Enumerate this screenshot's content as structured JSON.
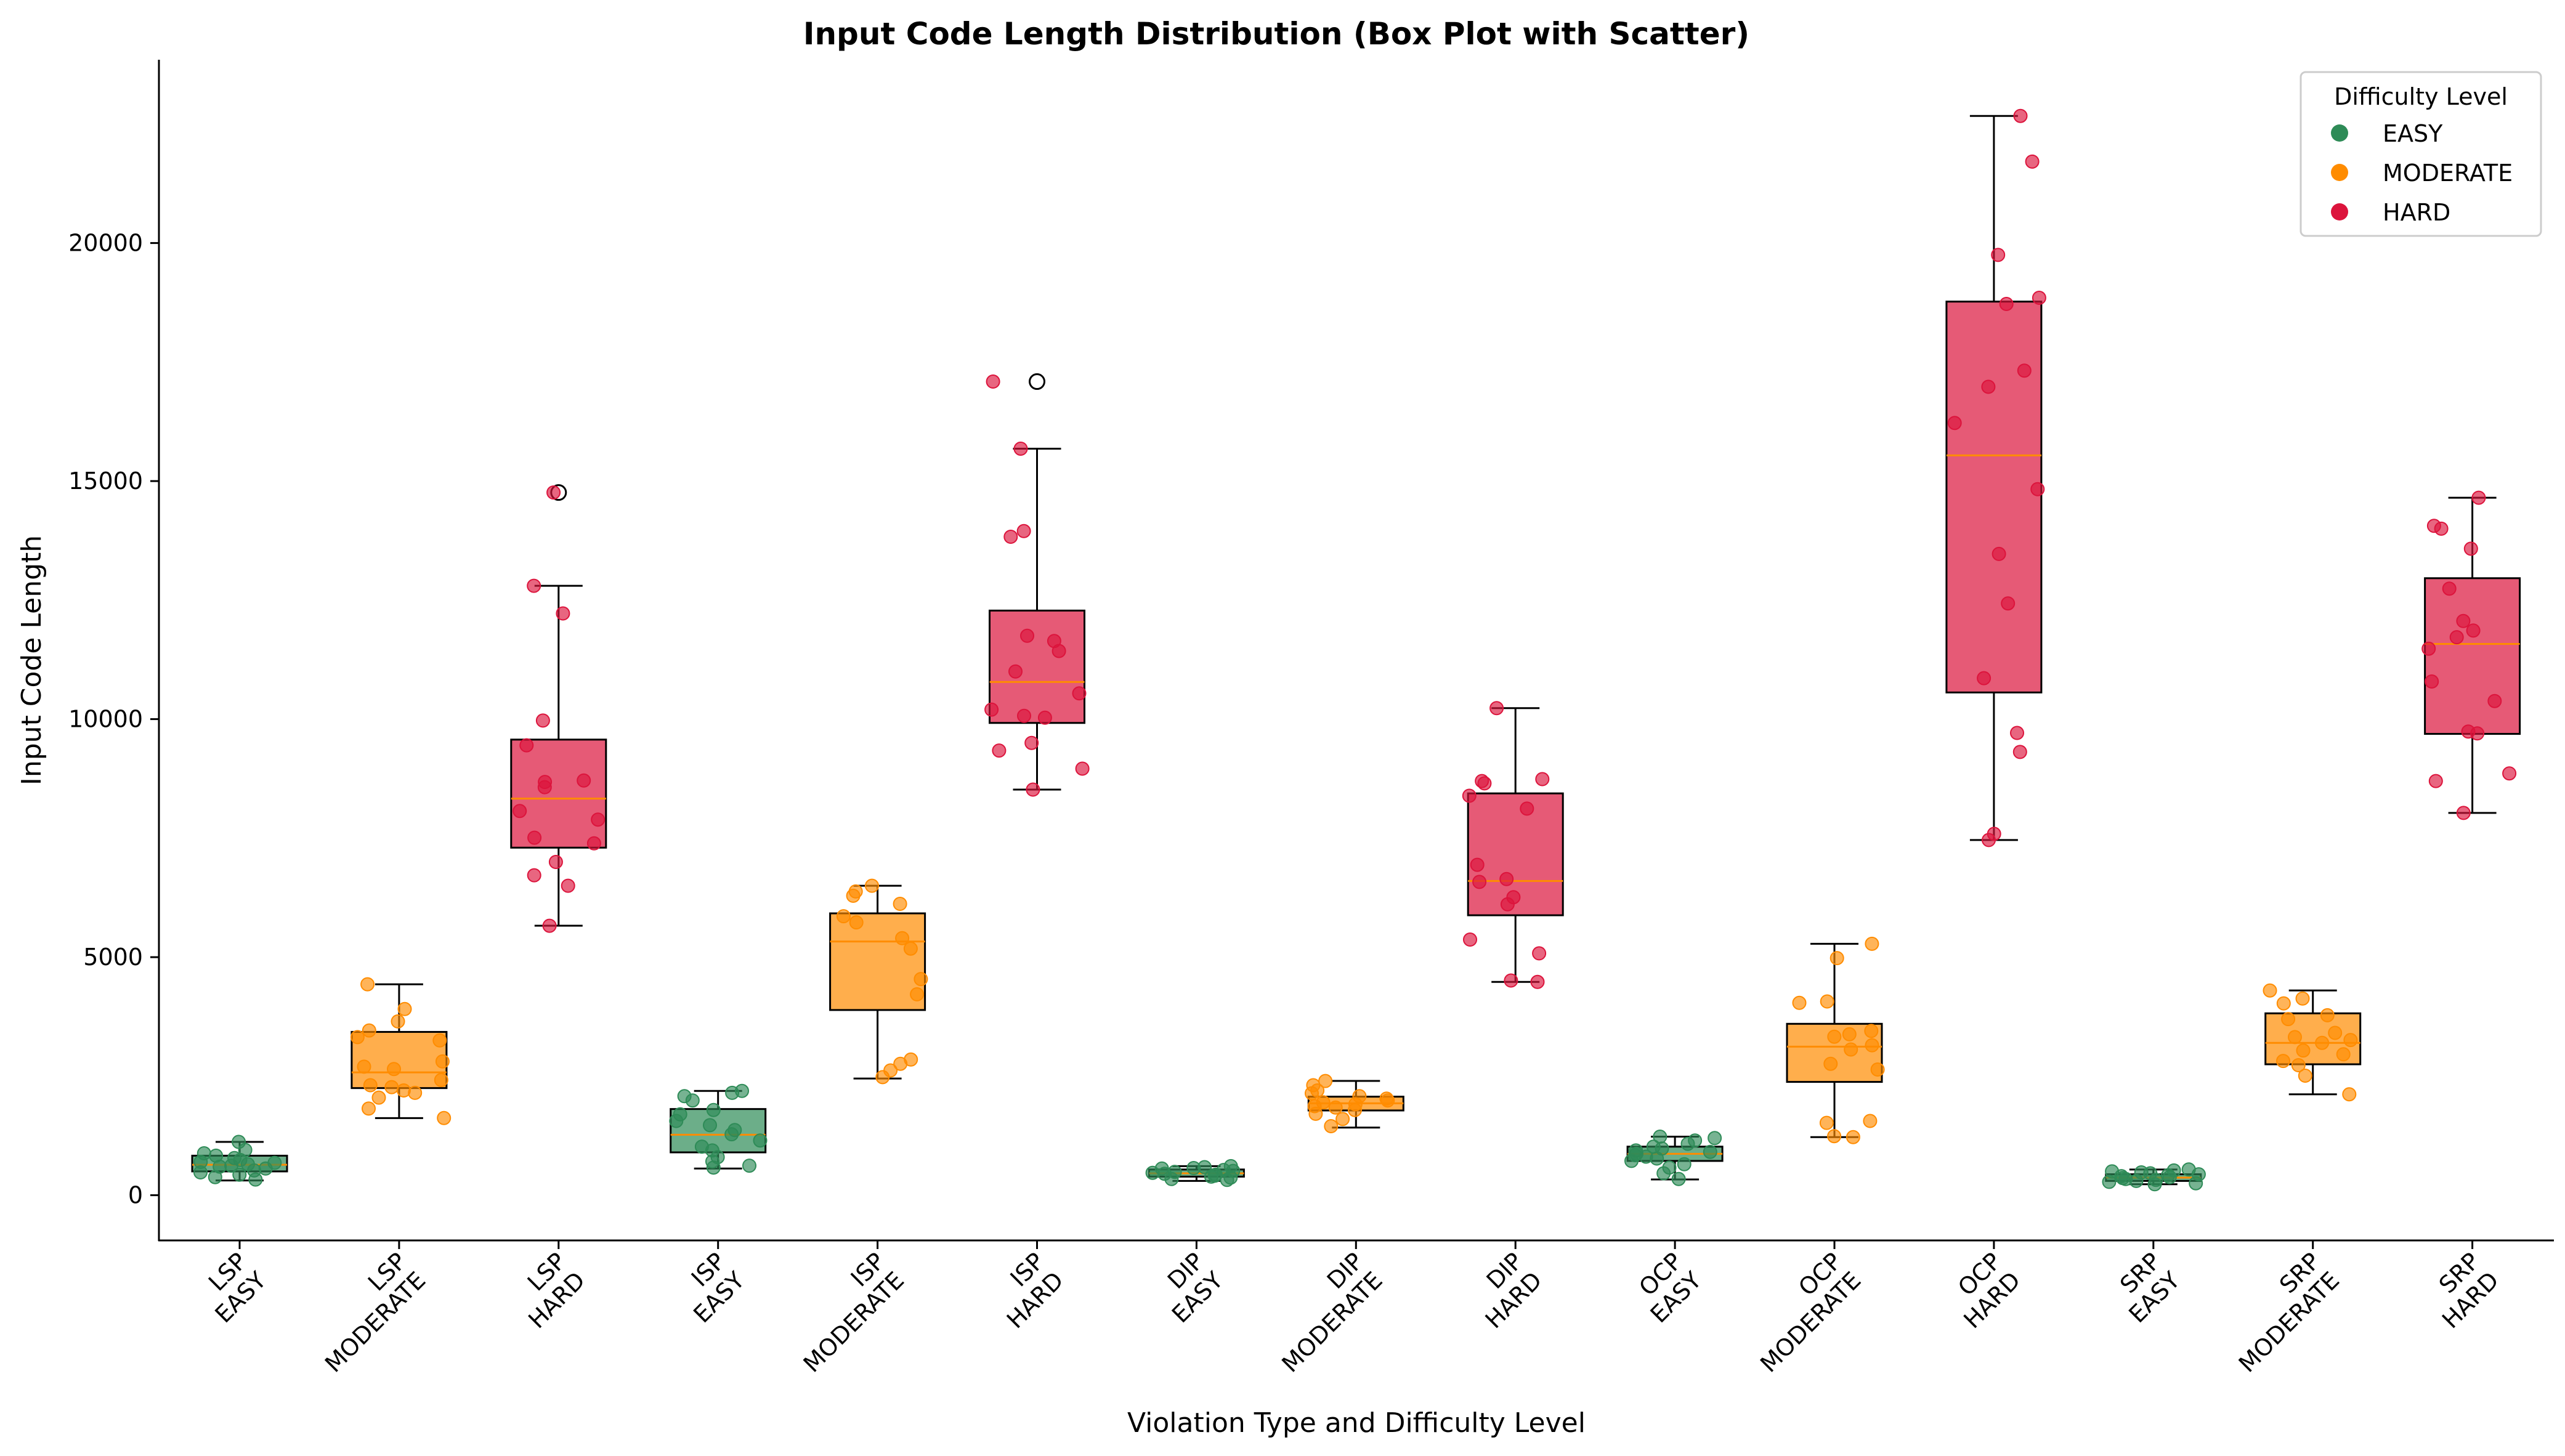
{
  "chart_data": {
    "type": "box",
    "title": "Input Code Length Distribution (Box Plot with Scatter)",
    "xlabel": "Violation Type and Difficulty Level",
    "ylabel": "Input Code Length",
    "ylim": [
      -950,
      23850
    ],
    "yticks": [
      0,
      5000,
      10000,
      15000,
      20000
    ],
    "grid": false,
    "legend": {
      "title": "Difficulty Level",
      "position": "top-right",
      "entries": [
        {
          "label": "EASY",
          "color": "#2e8b57"
        },
        {
          "label": "MODERATE",
          "color": "#ff8c00"
        },
        {
          "label": "HARD",
          "color": "#dc143c"
        }
      ]
    },
    "median_color": "#ff8c00",
    "groups": [
      {
        "violation": "LSP",
        "difficulty": "EASY",
        "color": "#2e8b57",
        "box": {
          "whisker_low": 310,
          "q1": 500,
          "median": 640,
          "q3": 830,
          "whisker_high": 1120
        },
        "outliers": [],
        "points": [
          1120,
          950,
          880,
          830,
          780,
          740,
          700,
          680,
          650,
          620,
          600,
          560,
          520,
          480,
          430,
          380,
          330
        ]
      },
      {
        "violation": "LSP",
        "difficulty": "MODERATE",
        "color": "#ff8c00",
        "box": {
          "whisker_low": 1620,
          "q1": 2250,
          "median": 2580,
          "q3": 3430,
          "whisker_high": 4430
        },
        "outliers": [],
        "points": [
          4430,
          3910,
          3650,
          3460,
          3320,
          3250,
          2810,
          2700,
          2650,
          2420,
          2310,
          2270,
          2200,
          2150,
          2050,
          1820,
          1620
        ]
      },
      {
        "violation": "LSP",
        "difficulty": "HARD",
        "color": "#dc143c",
        "box": {
          "whisker_low": 5660,
          "q1": 7300,
          "median": 8330,
          "q3": 9570,
          "whisker_high": 12800
        },
        "outliers": [
          14760
        ],
        "points": [
          14760,
          12800,
          12220,
          9970,
          9450,
          8710,
          8680,
          8570,
          8070,
          7890,
          7510,
          7390,
          7000,
          6720,
          6500,
          5660
        ]
      },
      {
        "violation": "ISP",
        "difficulty": "EASY",
        "color": "#2e8b57",
        "box": {
          "whisker_low": 560,
          "q1": 900,
          "median": 1270,
          "q3": 1810,
          "whisker_high": 2190
        },
        "outliers": [],
        "points": [
          2190,
          2150,
          2080,
          1990,
          1790,
          1700,
          1560,
          1470,
          1370,
          1280,
          1150,
          1020,
          940,
          800,
          710,
          620,
          580
        ]
      },
      {
        "violation": "ISP",
        "difficulty": "MODERATE",
        "color": "#ff8c00",
        "box": {
          "whisker_low": 2450,
          "q1": 3890,
          "median": 5330,
          "q3": 5920,
          "whisker_high": 6500
        },
        "outliers": [],
        "points": [
          6500,
          6380,
          6290,
          6120,
          5860,
          5730,
          5400,
          5180,
          4540,
          4220,
          2850,
          2760,
          2620,
          2480
        ]
      },
      {
        "violation": "ISP",
        "difficulty": "HARD",
        "color": "#dc143c",
        "box": {
          "whisker_low": 8520,
          "q1": 9920,
          "median": 10780,
          "q3": 12280,
          "whisker_high": 15680
        },
        "outliers": [
          17090
        ],
        "points": [
          17090,
          15680,
          13950,
          13830,
          11750,
          11640,
          11430,
          11000,
          10540,
          10200,
          10070,
          10030,
          9500,
          9340,
          8960,
          8520
        ]
      },
      {
        "violation": "DIP",
        "difficulty": "EASY",
        "color": "#2e8b57",
        "box": {
          "whisker_low": 300,
          "q1": 390,
          "median": 460,
          "q3": 540,
          "whisker_high": 610
        },
        "outliers": [],
        "points": [
          610,
          590,
          570,
          560,
          530,
          510,
          490,
          470,
          450,
          430,
          410,
          390,
          370,
          340,
          320
        ]
      },
      {
        "violation": "DIP",
        "difficulty": "MODERATE",
        "color": "#ff8c00",
        "box": {
          "whisker_low": 1420,
          "q1": 1780,
          "median": 1930,
          "q3": 2070,
          "whisker_high": 2400
        },
        "outliers": [],
        "points": [
          2400,
          2310,
          2200,
          2140,
          2080,
          2030,
          1990,
          1950,
          1910,
          1870,
          1840,
          1790,
          1710,
          1600,
          1450
        ]
      },
      {
        "violation": "DIP",
        "difficulty": "HARD",
        "color": "#dc143c",
        "box": {
          "whisker_low": 4480,
          "q1": 5880,
          "median": 6600,
          "q3": 8440,
          "whisker_high": 10230
        },
        "outliers": [],
        "points": [
          10230,
          8740,
          8700,
          8650,
          8390,
          8120,
          6940,
          6640,
          6580,
          6260,
          6110,
          5370,
          5080,
          4510,
          4480
        ]
      },
      {
        "violation": "OCP",
        "difficulty": "EASY",
        "color": "#2e8b57",
        "box": {
          "whisker_low": 330,
          "q1": 720,
          "median": 870,
          "q3": 1020,
          "whisker_high": 1230
        },
        "outliers": [],
        "points": [
          1230,
          1200,
          1150,
          1080,
          1020,
          980,
          940,
          910,
          870,
          840,
          810,
          770,
          720,
          650,
          580,
          460,
          340
        ]
      },
      {
        "violation": "OCP",
        "difficulty": "MODERATE",
        "color": "#ff8c00",
        "box": {
          "whisker_low": 1220,
          "q1": 2380,
          "median": 3120,
          "q3": 3600,
          "whisker_high": 5280
        },
        "outliers": [],
        "points": [
          5280,
          4980,
          4070,
          4040,
          3450,
          3380,
          3330,
          3150,
          3060,
          2760,
          2640,
          1560,
          1520,
          1240,
          1220
        ]
      },
      {
        "violation": "OCP",
        "difficulty": "HARD",
        "color": "#dc143c",
        "box": {
          "whisker_low": 7460,
          "q1": 10560,
          "median": 15540,
          "q3": 18770,
          "whisker_high": 22670
        },
        "outliers": [],
        "points": [
          22670,
          21710,
          19750,
          18850,
          18720,
          17320,
          16980,
          16220,
          14830,
          13470,
          12430,
          10860,
          9710,
          9310,
          7590,
          7460
        ]
      },
      {
        "violation": "SRP",
        "difficulty": "EASY",
        "color": "#2e8b57",
        "box": {
          "whisker_low": 230,
          "q1": 300,
          "median": 370,
          "q3": 440,
          "whisker_high": 540
        },
        "outliers": [],
        "points": [
          540,
          520,
          500,
          480,
          460,
          440,
          420,
          400,
          380,
          360,
          340,
          320,
          300,
          280,
          250,
          230
        ]
      },
      {
        "violation": "SRP",
        "difficulty": "MODERATE",
        "color": "#ff8c00",
        "box": {
          "whisker_low": 2120,
          "q1": 2750,
          "median": 3200,
          "q3": 3820,
          "whisker_high": 4300
        },
        "outliers": [],
        "points": [
          4300,
          4130,
          4030,
          3780,
          3700,
          3410,
          3320,
          3260,
          3200,
          3040,
          2960,
          2820,
          2730,
          2510,
          2120
        ]
      },
      {
        "violation": "SRP",
        "difficulty": "HARD",
        "color": "#dc143c",
        "box": {
          "whisker_low": 8030,
          "q1": 9690,
          "median": 11580,
          "q3": 12960,
          "whisker_high": 14650
        },
        "outliers": [],
        "points": [
          14650,
          14060,
          14000,
          13580,
          12740,
          12060,
          11860,
          11720,
          11480,
          10790,
          10380,
          9740,
          9700,
          8860,
          8700,
          8030
        ]
      }
    ]
  }
}
